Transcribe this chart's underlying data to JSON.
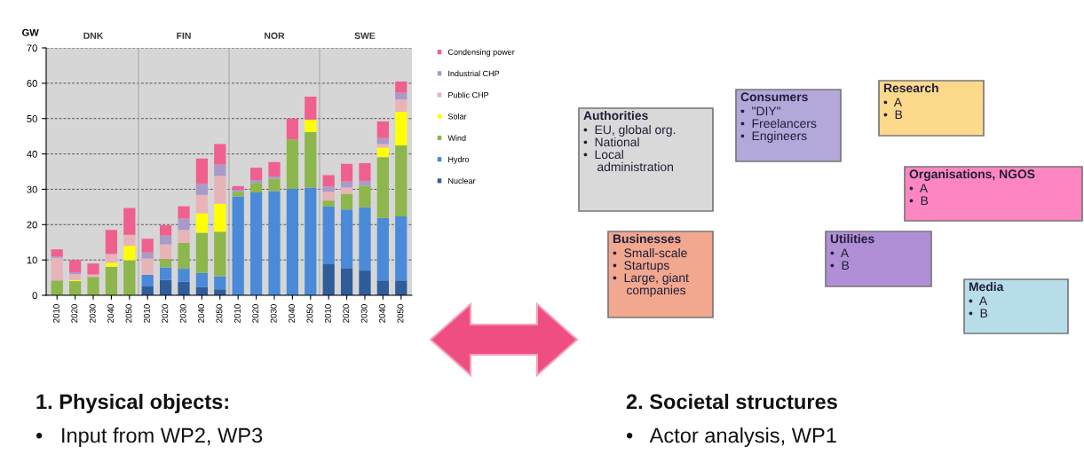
{
  "chart_data": [
    {
      "type": "bar",
      "stacked": true,
      "ylabel": "GW",
      "categories": [
        "2010",
        "2020",
        "2030",
        "2040",
        "2050",
        "2010",
        "2020",
        "2030",
        "2040",
        "2050",
        "2010",
        "2020",
        "2030",
        "2040",
        "2050",
        "2010",
        "2020",
        "2030",
        "2040",
        "2050"
      ],
      "annotations": [
        "DNK",
        "FIN",
        "NOR",
        "SWE"
      ],
      "series": [
        {
          "name": "Nuclear",
          "color": "#2f5d9a",
          "values": [
            0,
            0,
            0,
            0,
            0,
            2.5,
            4.3,
            3.8,
            2.3,
            1.7,
            0,
            0,
            0,
            0,
            0,
            8.8,
            7.7,
            7.0,
            4.2,
            4.2
          ]
        },
        {
          "name": "Hydro",
          "color": "#4a8ad8",
          "values": [
            0,
            0,
            0,
            0,
            0,
            3.3,
            3.6,
            3.7,
            4.0,
            3.7,
            28.0,
            29.1,
            29.5,
            30.1,
            30.5,
            16.3,
            16.6,
            17.9,
            17.7,
            18.1
          ]
        },
        {
          "name": "Wind",
          "color": "#8db64c",
          "values": [
            4.2,
            4.0,
            5.2,
            8.1,
            9.9,
            0,
            2.4,
            7.3,
            11.4,
            12.6,
            1.3,
            2.7,
            3.5,
            14.0,
            15.7,
            1.7,
            4.4,
            6.1,
            17.2,
            20.1
          ]
        },
        {
          "name": "Solar",
          "color": "#ffff00",
          "values": [
            0,
            0.3,
            0,
            1.1,
            4.1,
            0,
            0,
            0,
            5.5,
            7.9,
            0,
            0,
            0,
            0,
            3.5,
            0,
            0,
            0,
            2.7,
            9.5
          ]
        },
        {
          "name": "Public CHP",
          "color": "#e8b4b8",
          "values": [
            6.4,
            1.7,
            0.7,
            2.5,
            3.1,
            4.6,
            4.1,
            3.7,
            5.2,
            7.9,
            0,
            0,
            0,
            0,
            0,
            2.5,
            1.8,
            null,
            1.0,
            3.5
          ]
        },
        {
          "name": "Industrial CHP",
          "color": "#a99ac8",
          "values": [
            0.4,
            0.5,
            null,
            0,
            0,
            1.7,
            2.5,
            3.2,
            3.1,
            3.2,
            0.6,
            0.8,
            0.6,
            0,
            0,
            1.5,
            1.7,
            1.4,
            1.7,
            1.9
          ]
        },
        {
          "name": "Condensing power",
          "color": "#f0608e",
          "values": [
            2.0,
            3.5,
            3.1,
            6.8,
            7.6,
            3.9,
            2.9,
            3.5,
            7.2,
            5.8,
            1.0,
            3.5,
            4.1,
            5.9,
            6.5,
            3.2,
            5.0,
            5.0,
            4.7,
            3.2
          ]
        }
      ],
      "ylim": [
        0,
        70
      ],
      "yticks": [
        0,
        10,
        20,
        30,
        40,
        50,
        60,
        70
      ],
      "grid": "y",
      "legend": "right"
    },
    {
      "type": "other",
      "annotations": [
        "Authorities\n•  EU, global org.\n•  National\n•  Local\n    administration",
        "Consumers\n•  \"DIY\"\n•  Freelancers\n•  Engineers",
        "Research\n•  A\n•  B",
        "Organisations, NGOS\n•  A\n•  B",
        "Businesses\n•  Small-scale\n•  Startups\n•  Large, giant\n    companies",
        "Utilities\n•  A\n•  B",
        "Media\n•  A\n•  B",
        "1. Physical objects:\n•   Input from WP2, WP3",
        "2. Societal structures\n•   Actor analysis, WP1"
      ],
      "colors": [
        "#d9d9d9",
        "#b4a7d9",
        "#fdd98b",
        "#fd86c0",
        "#f2a78f",
        "#b18fd6",
        "#b7dde8"
      ]
    }
  ]
}
